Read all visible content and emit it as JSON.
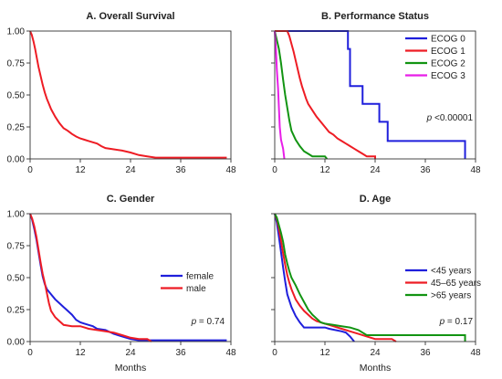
{
  "chart_data": [
    {
      "type": "line",
      "title": "A. Overall Survival",
      "xlabel": "",
      "xlim": [
        0,
        48
      ],
      "ylim": [
        0,
        1
      ],
      "xticks": [
        "0",
        "12",
        "24",
        "36",
        "48"
      ],
      "yticks": [
        "0.00",
        "0.25",
        "0.50",
        "0.75",
        "1.00"
      ],
      "series": [
        {
          "color": "#ee1c24",
          "points": [
            [
              0,
              1.0
            ],
            [
              0.4,
              0.97
            ],
            [
              0.8,
              0.92
            ],
            [
              1.2,
              0.86
            ],
            [
              1.6,
              0.79
            ],
            [
              2,
              0.72
            ],
            [
              2.5,
              0.65
            ],
            [
              3,
              0.58
            ],
            [
              3.5,
              0.52
            ],
            [
              4,
              0.47
            ],
            [
              4.5,
              0.43
            ],
            [
              5,
              0.39
            ],
            [
              5.5,
              0.36
            ],
            [
              6,
              0.33
            ],
            [
              6.5,
              0.305
            ],
            [
              7,
              0.28
            ],
            [
              7.5,
              0.26
            ],
            [
              8,
              0.24
            ],
            [
              9,
              0.22
            ],
            [
              10,
              0.195
            ],
            [
              11,
              0.175
            ],
            [
              12,
              0.16
            ],
            [
              13,
              0.15
            ],
            [
              14,
              0.14
            ],
            [
              15,
              0.13
            ],
            [
              16,
              0.12
            ],
            [
              17,
              0.1
            ],
            [
              18,
              0.085
            ],
            [
              20,
              0.075
            ],
            [
              22,
              0.065
            ],
            [
              24,
              0.05
            ],
            [
              26,
              0.03
            ],
            [
              28,
              0.02
            ],
            [
              30,
              0.01
            ],
            [
              36,
              0.01
            ],
            [
              47,
              0.01
            ]
          ]
        }
      ]
    },
    {
      "type": "line",
      "title": "B. Performance Status",
      "xlabel": "",
      "xlim": [
        0,
        48
      ],
      "ylim": [
        0,
        1
      ],
      "xticks": [
        "0",
        "12",
        "24",
        "36",
        "48"
      ],
      "yticks": [],
      "legend_position": "right",
      "annotation": "p <0.00001",
      "series": [
        {
          "name": "ECOG 0",
          "color": "#1f1fdc",
          "points": [
            [
              0,
              1.0
            ],
            [
              17.5,
              1.0
            ],
            [
              17.5,
              0.86
            ],
            [
              18,
              0.86
            ],
            [
              18,
              0.57
            ],
            [
              21,
              0.57
            ],
            [
              21,
              0.43
            ],
            [
              25,
              0.43
            ],
            [
              25,
              0.29
            ],
            [
              27,
              0.29
            ],
            [
              27,
              0.14
            ],
            [
              45.5,
              0.14
            ],
            [
              45.5,
              0.0
            ]
          ]
        },
        {
          "name": "ECOG 1",
          "color": "#ee1c24",
          "points": [
            [
              0,
              1.0
            ],
            [
              3,
              1.0
            ],
            [
              3.5,
              0.96
            ],
            [
              4,
              0.9
            ],
            [
              4.5,
              0.84
            ],
            [
              5,
              0.77
            ],
            [
              5.5,
              0.7
            ],
            [
              6,
              0.63
            ],
            [
              6.5,
              0.57
            ],
            [
              7,
              0.52
            ],
            [
              7.5,
              0.47
            ],
            [
              8,
              0.43
            ],
            [
              9,
              0.38
            ],
            [
              10,
              0.33
            ],
            [
              11,
              0.29
            ],
            [
              12,
              0.25
            ],
            [
              13,
              0.21
            ],
            [
              14,
              0.19
            ],
            [
              15,
              0.16
            ],
            [
              16,
              0.14
            ],
            [
              17,
              0.12
            ],
            [
              18,
              0.1
            ],
            [
              19,
              0.08
            ],
            [
              20,
              0.06
            ],
            [
              21,
              0.04
            ],
            [
              22,
              0.02
            ],
            [
              24,
              0.02
            ],
            [
              24,
              0.0
            ]
          ]
        },
        {
          "name": "ECOG 2",
          "color": "#129412",
          "points": [
            [
              0,
              1.0
            ],
            [
              0.5,
              0.93
            ],
            [
              1,
              0.86
            ],
            [
              1.5,
              0.75
            ],
            [
              2,
              0.62
            ],
            [
              2.5,
              0.5
            ],
            [
              3,
              0.4
            ],
            [
              3.5,
              0.3
            ],
            [
              4,
              0.22
            ],
            [
              5,
              0.15
            ],
            [
              6,
              0.1
            ],
            [
              7,
              0.06
            ],
            [
              8,
              0.04
            ],
            [
              9,
              0.02
            ],
            [
              12,
              0.02
            ],
            [
              12.5,
              0.0
            ]
          ]
        },
        {
          "name": "ECOG 3",
          "color": "#e81ee8",
          "points": [
            [
              0,
              1.0
            ],
            [
              0.3,
              0.85
            ],
            [
              0.5,
              0.7
            ],
            [
              0.8,
              0.55
            ],
            [
              1,
              0.4
            ],
            [
              1.2,
              0.25
            ],
            [
              1.5,
              0.15
            ],
            [
              2,
              0.08
            ],
            [
              2.3,
              0.0
            ]
          ]
        }
      ]
    },
    {
      "type": "line",
      "title": "C. Gender",
      "xlabel": "Months",
      "xlim": [
        0,
        48
      ],
      "ylim": [
        0,
        1
      ],
      "xticks": [
        "0",
        "12",
        "24",
        "36",
        "48"
      ],
      "yticks": [
        "0.00",
        "0.25",
        "0.50",
        "0.75",
        "1.00"
      ],
      "legend_position": "right",
      "annotation": "p = 0.74",
      "series": [
        {
          "name": "female",
          "color": "#1f1fdc",
          "points": [
            [
              0,
              1.0
            ],
            [
              0.5,
              0.95
            ],
            [
              1,
              0.88
            ],
            [
              1.5,
              0.8
            ],
            [
              2,
              0.7
            ],
            [
              2.5,
              0.6
            ],
            [
              3,
              0.51
            ],
            [
              3.5,
              0.45
            ],
            [
              4,
              0.41
            ],
            [
              5,
              0.37
            ],
            [
              6,
              0.33
            ],
            [
              7,
              0.3
            ],
            [
              8,
              0.27
            ],
            [
              9,
              0.24
            ],
            [
              10,
              0.21
            ],
            [
              11,
              0.17
            ],
            [
              12,
              0.15
            ],
            [
              13,
              0.14
            ],
            [
              14,
              0.13
            ],
            [
              15,
              0.12
            ],
            [
              16,
              0.1
            ],
            [
              18,
              0.09
            ],
            [
              20,
              0.06
            ],
            [
              22,
              0.04
            ],
            [
              24,
              0.02
            ],
            [
              26,
              0.01
            ],
            [
              36,
              0.01
            ],
            [
              47,
              0.01
            ]
          ]
        },
        {
          "name": "male",
          "color": "#ee1c24",
          "points": [
            [
              0,
              1.0
            ],
            [
              0.5,
              0.96
            ],
            [
              1,
              0.9
            ],
            [
              1.5,
              0.82
            ],
            [
              2,
              0.72
            ],
            [
              2.5,
              0.62
            ],
            [
              3,
              0.53
            ],
            [
              3.5,
              0.46
            ],
            [
              4,
              0.38
            ],
            [
              4.5,
              0.3
            ],
            [
              5,
              0.24
            ],
            [
              6,
              0.19
            ],
            [
              7,
              0.16
            ],
            [
              8,
              0.13
            ],
            [
              10,
              0.12
            ],
            [
              12,
              0.12
            ],
            [
              13,
              0.11
            ],
            [
              14,
              0.1
            ],
            [
              16,
              0.09
            ],
            [
              18,
              0.08
            ],
            [
              20,
              0.07
            ],
            [
              22,
              0.05
            ],
            [
              24,
              0.03
            ],
            [
              26,
              0.02
            ],
            [
              28,
              0.02
            ],
            [
              29,
              0.0
            ]
          ]
        }
      ]
    },
    {
      "type": "line",
      "title": "D. Age",
      "xlabel": "Months",
      "xlim": [
        0,
        48
      ],
      "ylim": [
        0,
        1
      ],
      "xticks": [
        "0",
        "12",
        "24",
        "36",
        "48"
      ],
      "yticks": [],
      "legend_position": "right",
      "annotation": "p = 0.17",
      "series": [
        {
          "name": "<45 years",
          "color": "#1f1fdc",
          "points": [
            [
              0,
              1.0
            ],
            [
              0.5,
              0.93
            ],
            [
              1,
              0.82
            ],
            [
              1.5,
              0.7
            ],
            [
              2,
              0.58
            ],
            [
              2.5,
              0.47
            ],
            [
              3,
              0.37
            ],
            [
              4,
              0.27
            ],
            [
              5,
              0.2
            ],
            [
              6,
              0.15
            ],
            [
              7,
              0.11
            ],
            [
              12,
              0.11
            ],
            [
              13,
              0.1
            ],
            [
              16,
              0.08
            ],
            [
              17,
              0.07
            ],
            [
              18,
              0.04
            ],
            [
              19,
              0.0
            ]
          ]
        },
        {
          "name": "45–65 years",
          "color": "#ee1c24",
          "points": [
            [
              0,
              1.0
            ],
            [
              0.5,
              0.96
            ],
            [
              1,
              0.88
            ],
            [
              1.5,
              0.79
            ],
            [
              2,
              0.69
            ],
            [
              2.5,
              0.6
            ],
            [
              3,
              0.52
            ],
            [
              3.5,
              0.46
            ],
            [
              4,
              0.41
            ],
            [
              5,
              0.33
            ],
            [
              6,
              0.28
            ],
            [
              7,
              0.24
            ],
            [
              8,
              0.21
            ],
            [
              9,
              0.18
            ],
            [
              10,
              0.16
            ],
            [
              12,
              0.14
            ],
            [
              14,
              0.12
            ],
            [
              16,
              0.1
            ],
            [
              18,
              0.08
            ],
            [
              20,
              0.06
            ],
            [
              22,
              0.04
            ],
            [
              24,
              0.02
            ],
            [
              26,
              0.02
            ],
            [
              28,
              0.02
            ],
            [
              29,
              0.0
            ]
          ]
        },
        {
          "name": ">65 years",
          "color": "#129412",
          "points": [
            [
              0,
              1.0
            ],
            [
              0.5,
              0.97
            ],
            [
              1,
              0.91
            ],
            [
              1.5,
              0.85
            ],
            [
              2,
              0.78
            ],
            [
              2.5,
              0.68
            ],
            [
              3,
              0.61
            ],
            [
              3.5,
              0.55
            ],
            [
              4,
              0.5
            ],
            [
              5,
              0.44
            ],
            [
              6,
              0.37
            ],
            [
              7,
              0.31
            ],
            [
              8,
              0.25
            ],
            [
              9,
              0.21
            ],
            [
              10,
              0.18
            ],
            [
              11,
              0.15
            ],
            [
              12,
              0.14
            ],
            [
              14,
              0.13
            ],
            [
              16,
              0.12
            ],
            [
              18,
              0.11
            ],
            [
              20,
              0.09
            ],
            [
              21,
              0.07
            ],
            [
              22,
              0.05
            ],
            [
              24,
              0.05
            ],
            [
              45.5,
              0.05
            ],
            [
              45.5,
              0.0
            ]
          ]
        }
      ]
    }
  ]
}
